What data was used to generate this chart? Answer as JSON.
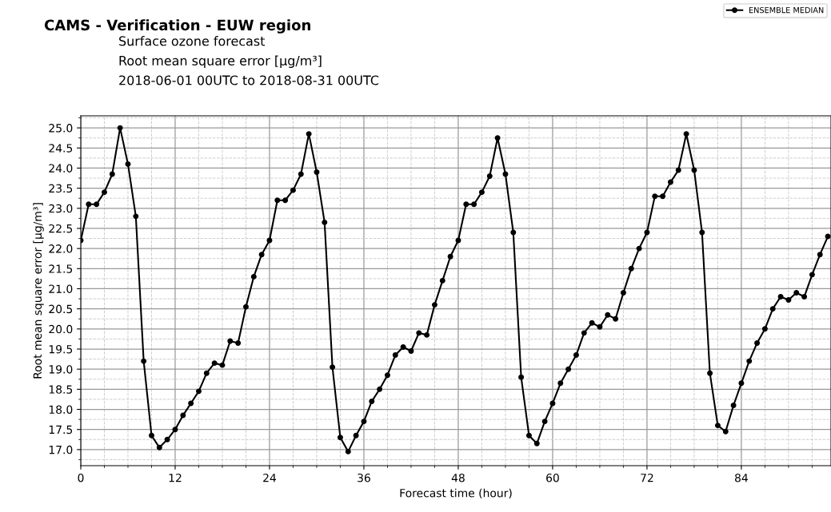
{
  "chart_data": {
    "type": "line",
    "title": "CAMS - Verification - EUW region",
    "subtitle": "Surface ozone forecast\nRoot mean square error [μg/m³]\n2018-06-01 00UTC to 2018-08-31 00UTC",
    "xlabel": "Forecast time (hour)",
    "ylabel": "Root mean square error [μg/m³]",
    "x": [
      0,
      1,
      2,
      3,
      4,
      5,
      6,
      7,
      8,
      9,
      10,
      11,
      12,
      13,
      14,
      15,
      16,
      17,
      18,
      19,
      20,
      21,
      22,
      23,
      24,
      25,
      26,
      27,
      28,
      29,
      30,
      31,
      32,
      33,
      34,
      35,
      36,
      37,
      38,
      39,
      40,
      41,
      42,
      43,
      44,
      45,
      46,
      47,
      48,
      49,
      50,
      51,
      52,
      53,
      54,
      55,
      56,
      57,
      58,
      59,
      60,
      61,
      62,
      63,
      64,
      65,
      66,
      67,
      68,
      69,
      70,
      71,
      72,
      73,
      74,
      75,
      76,
      77,
      78,
      79,
      80,
      81,
      82,
      83,
      84,
      85,
      86,
      87,
      88,
      89,
      90,
      91,
      92,
      93,
      94,
      95
    ],
    "series": [
      {
        "name": "ENSEMBLE MEDIAN",
        "color": "#000000",
        "values": [
          22.2,
          23.1,
          23.1,
          23.4,
          23.85,
          25.0,
          24.1,
          22.8,
          19.2,
          17.35,
          17.05,
          17.25,
          17.5,
          17.85,
          18.15,
          18.45,
          18.9,
          19.15,
          19.1,
          19.7,
          19.65,
          20.55,
          21.3,
          21.85,
          22.2,
          23.2,
          23.2,
          23.45,
          23.85,
          24.85,
          23.9,
          22.65,
          19.05,
          17.3,
          16.95,
          17.35,
          17.7,
          18.2,
          18.5,
          18.85,
          19.35,
          19.55,
          19.45,
          19.9,
          19.85,
          20.6,
          21.2,
          21.8,
          22.2,
          23.1,
          23.1,
          23.4,
          23.8,
          24.75,
          23.85,
          22.4,
          18.8,
          17.35,
          17.15,
          17.7,
          18.15,
          18.65,
          19.0,
          19.35,
          19.9,
          20.15,
          20.05,
          20.35,
          20.25,
          20.9,
          21.5,
          22.0,
          22.4,
          23.3,
          23.3,
          23.65,
          23.95,
          24.85,
          23.95,
          22.4,
          18.9,
          17.6,
          17.45,
          18.1,
          18.65,
          19.2,
          19.65,
          20.0,
          20.5,
          20.8,
          20.72,
          20.9,
          20.8,
          21.35,
          21.85,
          22.3
        ]
      }
    ],
    "xlim": [
      0,
      95.4
    ],
    "xticks": [
      0,
      12,
      24,
      36,
      48,
      60,
      72,
      84
    ],
    "ylim": [
      16.6,
      25.3
    ],
    "yticks": [
      {
        "value": 17,
        "label": "17.0"
      },
      17.5,
      {
        "value": 18,
        "label": "18.0"
      },
      18.5,
      {
        "value": 19,
        "label": "19.0"
      },
      19.5,
      {
        "value": 20,
        "label": "20.0"
      },
      20.5,
      {
        "value": 21,
        "label": "21.0"
      },
      21.5,
      {
        "value": 22,
        "label": "22.0"
      },
      22.5,
      {
        "value": 23,
        "label": "23.0"
      },
      23.5,
      {
        "value": 24,
        "label": "24.0"
      },
      24.5,
      {
        "value": 25,
        "label": "25.0"
      }
    ],
    "grid": true,
    "legend": "top right",
    "marker": "circle",
    "line_style": "solid"
  }
}
